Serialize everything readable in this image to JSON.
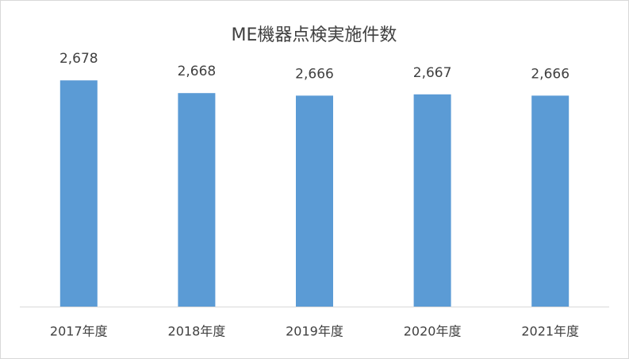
{
  "chart_data": {
    "type": "bar",
    "title": "ME機器点検実施件数",
    "categories": [
      "2017年度",
      "2018年度",
      "2019年度",
      "2020年度",
      "2021年度"
    ],
    "values": [
      2678,
      2668,
      2666,
      2667,
      2666
    ],
    "value_labels": [
      "2,678",
      "2,668",
      "2,666",
      "2,667",
      "2,666"
    ],
    "color": "#5b9bd5",
    "ylim": [
      2500,
      2700
    ]
  }
}
